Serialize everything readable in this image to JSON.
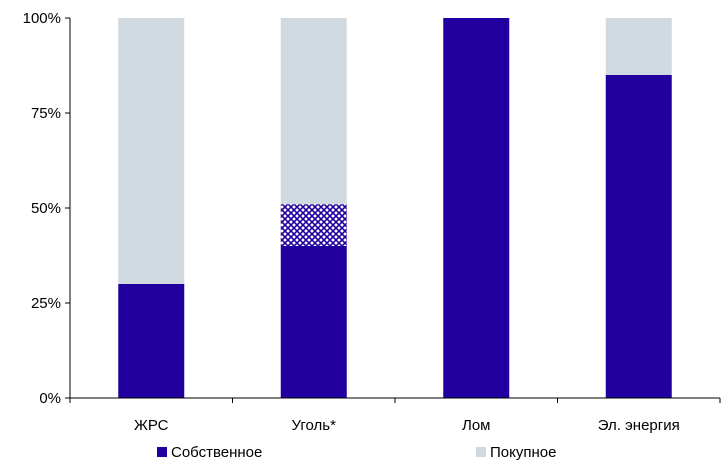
{
  "chart_data": {
    "type": "bar",
    "stacked": true,
    "categories": [
      "ЖРС",
      "Уголь*",
      "Лом",
      "Эл. энергия"
    ],
    "series": [
      {
        "name": "Собственное",
        "values": [
          30,
          40,
          100,
          85
        ],
        "color": "#2200A0"
      },
      {
        "name": "",
        "values": [
          0,
          11,
          0,
          0
        ],
        "color": "#2200A0",
        "pattern": "crosshatch"
      },
      {
        "name": "Покупное",
        "values": [
          70,
          49,
          0,
          15
        ],
        "color": "#D0D9E0"
      }
    ],
    "y_ticks": [
      "0%",
      "25%",
      "50%",
      "75%",
      "100%"
    ],
    "ylim": [
      0,
      100
    ],
    "grid": false,
    "legend": "bottom",
    "title": "",
    "xlabel": "",
    "ylabel": ""
  }
}
